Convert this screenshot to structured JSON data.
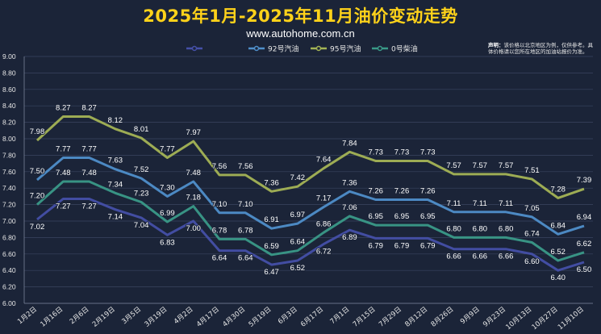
{
  "header": {
    "title": "2025年1月-2025年11月油价变动走势",
    "subtitle": "www.autohome.com.cn"
  },
  "disclaimer": {
    "label": "声明：",
    "text": "该价格以北京地区为例，仅供参考。具体价格请以您所在地区的加油站报价为准。"
  },
  "chart_data": {
    "type": "line",
    "x": [
      "1月2日",
      "1月16日",
      "2月6日",
      "2月19日",
      "3月5日",
      "3月19日",
      "4月2日",
      "4月17日",
      "4月30日",
      "5月19日",
      "6月3日",
      "6月17日",
      "7月1日",
      "7月15日",
      "7月29日",
      "8月12日",
      "8月26日",
      "9月9日",
      "9月23日",
      "10月13日",
      "10月27日",
      "11月10日"
    ],
    "ylim": [
      6.0,
      9.0
    ],
    "yticks": [
      "6.00",
      "6.20",
      "6.40",
      "6.60",
      "6.80",
      "7.00",
      "7.20",
      "7.40",
      "7.60",
      "7.80",
      "8.00",
      "8.20",
      "8.40",
      "8.60",
      "8.80",
      "9.00"
    ],
    "grid": true,
    "legend_position": "top",
    "series": [
      {
        "name": "92号汽油",
        "color": "#4f8fca",
        "values": [
          7.5,
          7.77,
          7.77,
          7.63,
          7.52,
          7.3,
          7.48,
          7.1,
          7.1,
          6.91,
          6.97,
          7.17,
          7.36,
          7.26,
          7.26,
          7.26,
          7.11,
          7.11,
          7.11,
          7.05,
          6.84,
          6.94
        ]
      },
      {
        "name": "95号汽油",
        "color": "#a4b455",
        "values": [
          7.98,
          8.27,
          8.27,
          8.12,
          8.01,
          7.77,
          7.97,
          7.56,
          7.56,
          7.36,
          7.42,
          7.64,
          7.84,
          7.73,
          7.73,
          7.73,
          7.57,
          7.57,
          7.57,
          7.51,
          7.28,
          7.39
        ]
      },
      {
        "name": "0号柴油",
        "color": "#3a9a88",
        "values": [
          7.2,
          7.48,
          7.48,
          7.34,
          7.23,
          6.99,
          7.18,
          6.78,
          6.78,
          6.59,
          6.64,
          6.86,
          7.06,
          6.95,
          6.95,
          6.95,
          6.8,
          6.8,
          6.8,
          6.74,
          6.52,
          6.62
        ]
      },
      {
        "name": "",
        "color": "#4550a8",
        "values": [
          7.02,
          7.27,
          7.27,
          7.14,
          7.04,
          6.83,
          7.0,
          6.64,
          6.64,
          6.47,
          6.52,
          6.72,
          6.89,
          6.79,
          6.79,
          6.79,
          6.66,
          6.66,
          6.66,
          6.6,
          6.4,
          6.5
        ]
      }
    ]
  }
}
